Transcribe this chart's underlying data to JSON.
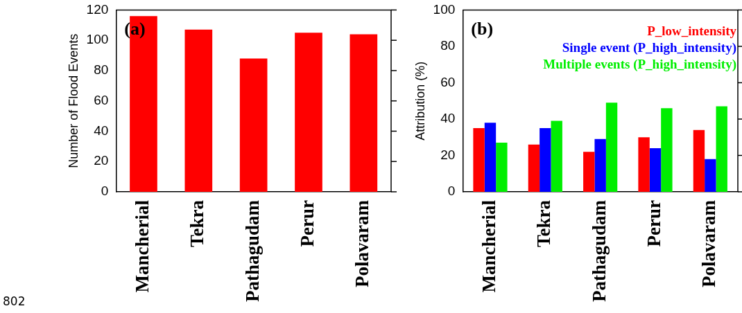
{
  "chart_data": [
    {
      "type": "bar",
      "ylabel": "Number of Flood Events",
      "categories": [
        "Mancherial",
        "Tekra",
        "Pathagudam",
        "Perur",
        "Polavaram"
      ],
      "series": [
        {
          "color": "#ff0000",
          "values": [
            116,
            107,
            88,
            105,
            104
          ]
        }
      ],
      "ylim": [
        0,
        120
      ],
      "yticks": [
        0,
        20,
        40,
        60,
        80,
        100,
        120
      ],
      "grid": false,
      "legend": false,
      "annotations": [
        "(a)",
        "802"
      ]
    },
    {
      "type": "bar",
      "ylabel": "Attribution (%)",
      "categories": [
        "Mancherial",
        "Tekra",
        "Pathagudam",
        "Perur",
        "Polavaram"
      ],
      "series": [
        {
          "name": "P_low_intensity",
          "color": "#ff0000",
          "values": [
            35,
            26,
            22,
            30,
            34
          ]
        },
        {
          "name": "Single event (P_high_intensity)",
          "color": "#0000ff",
          "values": [
            38,
            35,
            29,
            24,
            18
          ]
        },
        {
          "name": "Multiple events (P_high_intensity)",
          "color": "#00ee00",
          "values": [
            27,
            39,
            49,
            46,
            47
          ]
        }
      ],
      "ylim": [
        0,
        100
      ],
      "yticks": [
        0,
        20,
        40,
        60,
        80,
        100
      ],
      "grid": false,
      "legend": "top right",
      "annotations": [
        "(b)"
      ]
    }
  ]
}
